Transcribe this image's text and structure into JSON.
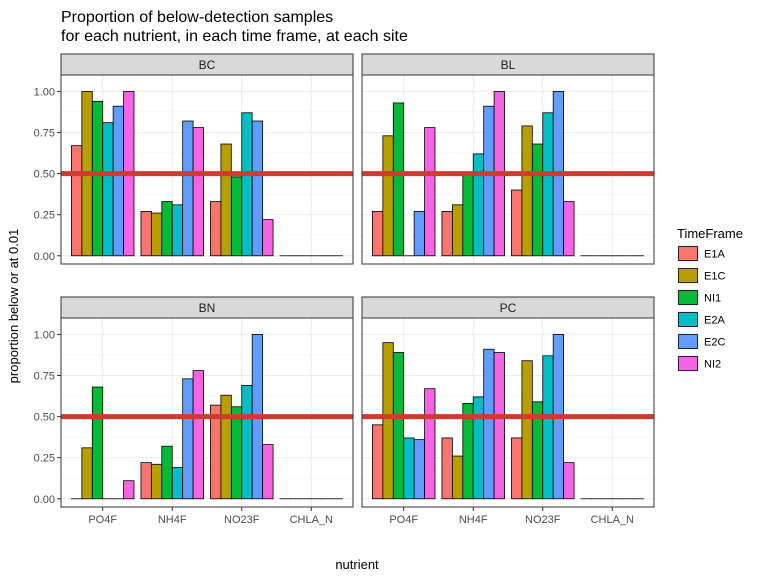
{
  "chart_data": {
    "type": "bar",
    "title_lines": [
      "Proportion of below-detection samples",
      "for each nutrient, in each time frame, at each site"
    ],
    "xlabel": "nutrient",
    "ylabel": "proportion below or at 0.01",
    "categories": [
      "PO4F",
      "NH4F",
      "NO23F",
      "CHLA_N"
    ],
    "ylim": [
      -0.05,
      1.1
    ],
    "yticks": [
      0,
      0.25,
      0.5,
      0.75,
      1.0
    ],
    "ytick_labels": [
      "0.00",
      "0.25",
      "0.50",
      "0.75",
      "1.00"
    ],
    "reference_line": {
      "y": 0.5,
      "color": "#d03a2f"
    },
    "grid": true,
    "legend_position": "right",
    "legend": {
      "title": "TimeFrame",
      "entries": [
        {
          "name": "E1A",
          "color": "#F8766D"
        },
        {
          "name": "E1C",
          "color": "#B79F00"
        },
        {
          "name": "NI1",
          "color": "#00BA38"
        },
        {
          "name": "E2A",
          "color": "#00BFC4"
        },
        {
          "name": "E2C",
          "color": "#619CFF"
        },
        {
          "name": "NI2",
          "color": "#F564E3"
        }
      ]
    },
    "panels": [
      {
        "name": "BC",
        "series": [
          {
            "name": "E1A",
            "values": [
              0.67,
              0.27,
              0.33,
              0
            ]
          },
          {
            "name": "E1C",
            "values": [
              1.0,
              0.26,
              0.68,
              0
            ]
          },
          {
            "name": "NI1",
            "values": [
              0.94,
              0.33,
              0.48,
              0
            ]
          },
          {
            "name": "E2A",
            "values": [
              0.81,
              0.31,
              0.87,
              0
            ]
          },
          {
            "name": "E2C",
            "values": [
              0.91,
              0.82,
              0.82,
              0
            ]
          },
          {
            "name": "NI2",
            "values": [
              1.0,
              0.78,
              0.22,
              0
            ]
          }
        ]
      },
      {
        "name": "BL",
        "series": [
          {
            "name": "E1A",
            "values": [
              0.27,
              0.27,
              0.4,
              0
            ]
          },
          {
            "name": "E1C",
            "values": [
              0.73,
              0.31,
              0.79,
              0
            ]
          },
          {
            "name": "NI1",
            "values": [
              0.93,
              0.5,
              0.68,
              0
            ]
          },
          {
            "name": "E2A",
            "values": [
              0,
              0.62,
              0.87,
              0
            ]
          },
          {
            "name": "E2C",
            "values": [
              0.27,
              0.91,
              1.0,
              0
            ]
          },
          {
            "name": "NI2",
            "values": [
              0.78,
              1.0,
              0.33,
              0
            ]
          }
        ]
      },
      {
        "name": "BN",
        "series": [
          {
            "name": "E1A",
            "values": [
              0,
              0.22,
              0.57,
              0
            ]
          },
          {
            "name": "E1C",
            "values": [
              0.31,
              0.21,
              0.63,
              0
            ]
          },
          {
            "name": "NI1",
            "values": [
              0.68,
              0.32,
              0.56,
              0
            ]
          },
          {
            "name": "E2A",
            "values": [
              0,
              0.19,
              0.69,
              0
            ]
          },
          {
            "name": "E2C",
            "values": [
              0,
              0.73,
              1.0,
              0
            ]
          },
          {
            "name": "NI2",
            "values": [
              0.11,
              0.78,
              0.33,
              0
            ]
          }
        ]
      },
      {
        "name": "PC",
        "series": [
          {
            "name": "E1A",
            "values": [
              0.45,
              0.37,
              0.37,
              0
            ]
          },
          {
            "name": "E1C",
            "values": [
              0.95,
              0.26,
              0.84,
              0
            ]
          },
          {
            "name": "NI1",
            "values": [
              0.89,
              0.58,
              0.59,
              0
            ]
          },
          {
            "name": "E2A",
            "values": [
              0.37,
              0.62,
              0.87,
              0
            ]
          },
          {
            "name": "E2C",
            "values": [
              0.36,
              0.91,
              1.0,
              0
            ]
          },
          {
            "name": "NI2",
            "values": [
              0.67,
              0.89,
              0.22,
              0
            ]
          }
        ]
      }
    ]
  }
}
